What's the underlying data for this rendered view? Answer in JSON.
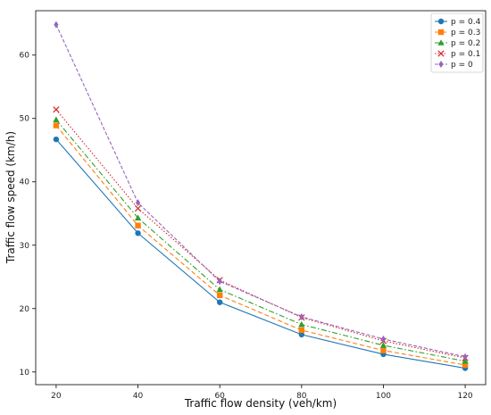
{
  "chart_data": {
    "type": "line",
    "xlabel": "Traffic flow density (veh/km)",
    "ylabel": "Traffic flow speed (km/h)",
    "x": [
      20,
      40,
      60,
      80,
      100,
      120
    ],
    "xlim": [
      15,
      125
    ],
    "ylim": [
      8,
      67
    ],
    "xticks": [
      20,
      40,
      60,
      80,
      100,
      120
    ],
    "yticks": [
      10,
      20,
      30,
      40,
      50,
      60
    ],
    "grid": false,
    "legend_position": "top-right",
    "series": [
      {
        "name": "p = 0.4",
        "values": [
          46.7,
          31.9,
          21.0,
          15.9,
          12.8,
          10.6
        ],
        "color": "#1f77b4",
        "marker": "circle",
        "linestyle": "solid"
      },
      {
        "name": "p = 0.3",
        "values": [
          48.9,
          33.1,
          22.1,
          16.6,
          13.4,
          11.1
        ],
        "color": "#ff7f0e",
        "marker": "square",
        "linestyle": "dashed"
      },
      {
        "name": "p = 0.2",
        "values": [
          49.8,
          34.3,
          23.0,
          17.5,
          14.2,
          11.7
        ],
        "color": "#2ca02c",
        "marker": "triangle",
        "linestyle": "dashdot"
      },
      {
        "name": "p = 0.1",
        "values": [
          51.4,
          35.8,
          24.5,
          18.6,
          14.9,
          12.2
        ],
        "color": "#d62728",
        "marker": "x",
        "linestyle": "dotted"
      },
      {
        "name": "p = 0",
        "values": [
          64.8,
          36.7,
          24.3,
          18.7,
          15.2,
          12.4
        ],
        "color": "#9467bd",
        "marker": "diamond",
        "linestyle": "densedash"
      }
    ]
  }
}
